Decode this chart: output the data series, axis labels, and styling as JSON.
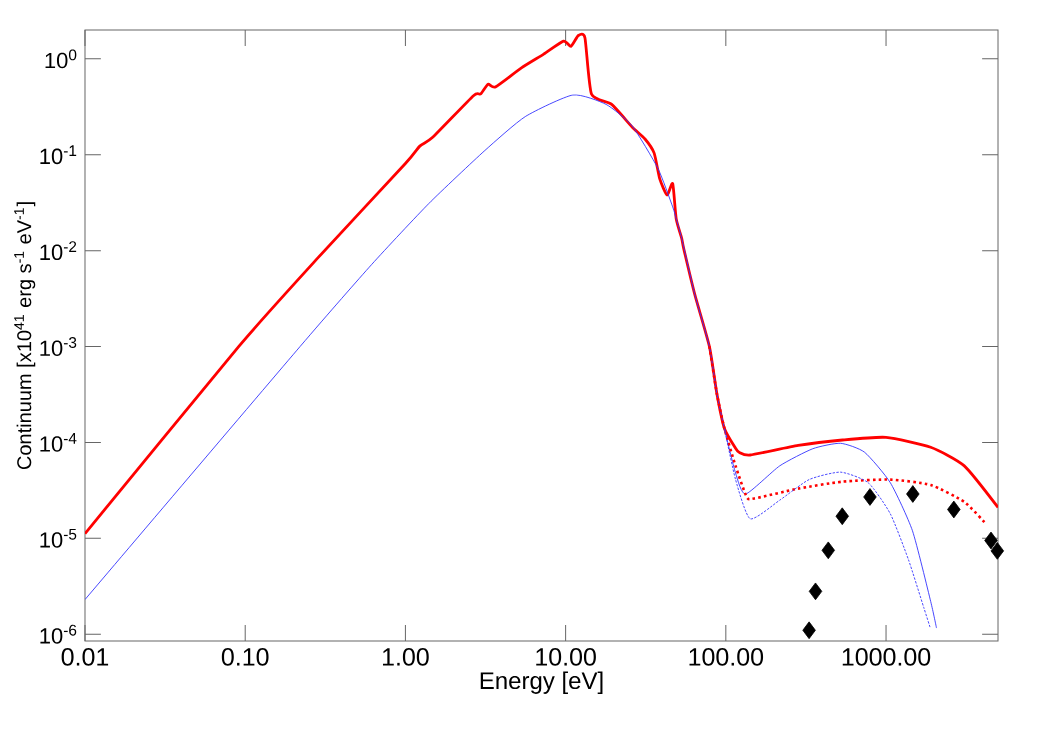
{
  "chart_data": {
    "type": "line",
    "xlabel": "Energy [eV]",
    "ylabel": "Continuum [x10$^{41}$ erg s$^{-1}$ eV$^{-1}$]",
    "log": "xy",
    "xlim": [
      0.01,
      5000
    ],
    "ylim": [
      8.5e-07,
      2
    ],
    "xticks": [
      {
        "value": 0.01,
        "label": "0.01"
      },
      {
        "value": 0.1,
        "label": "0.10"
      },
      {
        "value": 1,
        "label": "1.00"
      },
      {
        "value": 10,
        "label": "10.00"
      },
      {
        "value": 100,
        "label": "100.00"
      },
      {
        "value": 1000,
        "label": "1000.00"
      }
    ],
    "yticks": [
      {
        "value": 1e-06,
        "label": "10$^{-6}$"
      },
      {
        "value": 1e-05,
        "label": "10$^{-5}$"
      },
      {
        "value": 0.0001,
        "label": "10$^{-4}$"
      },
      {
        "value": 0.001,
        "label": "10$^{-3}$"
      },
      {
        "value": 0.01,
        "label": "10$^{-2}$"
      },
      {
        "value": 0.1,
        "label": "10$^{-1}$"
      },
      {
        "value": 1,
        "label": "10$^{0}$"
      }
    ],
    "series": [
      {
        "color": "#ff0000",
        "line_style": "solid",
        "x": [
          0.01,
          0.091,
          0.286,
          1.0,
          1.23,
          1.48,
          2.66,
          2.95,
          3.28,
          3.65,
          5.3,
          7.3,
          9.7,
          10.8,
          12.0,
          13.2,
          14.5,
          19.4,
          26,
          31.3,
          35.7,
          38.7,
          43,
          46.6,
          49,
          53,
          54.6,
          64,
          79,
          88,
          98,
          115,
          121,
          142,
          283,
          535,
          1000,
          1900,
          3080,
          5000
        ],
        "values": [
          1.12e-05,
          0.001,
          0.0085,
          0.081,
          0.123,
          0.152,
          0.413,
          0.43,
          0.544,
          0.51,
          0.805,
          1.12,
          1.53,
          1.35,
          1.75,
          1.66,
          0.43,
          0.335,
          0.195,
          0.146,
          0.104,
          0.056,
          0.038,
          0.05,
          0.0215,
          0.0135,
          0.0105,
          0.0035,
          0.001,
          0.00032,
          0.00014,
          8.7e-05,
          7.9e-05,
          7.4e-05,
          9.3e-05,
          0.000106,
          0.000113,
          8.9e-05,
          5.7e-05,
          2.1e-05
        ]
      },
      {
        "color": "#3333ff",
        "line_style": "solid",
        "x": [
          0.01,
          0.22,
          0.617,
          1.4,
          3.1,
          5.6,
          11.1,
          17.9,
          26,
          37.7,
          46.6,
          49,
          53,
          64,
          79,
          88,
          98,
          115,
          133,
          217,
          349,
          520,
          735,
          1064,
          1462,
          1900,
          2066
        ],
        "values": [
          2.3e-06,
          0.001,
          0.0072,
          0.031,
          0.109,
          0.25,
          0.42,
          0.335,
          0.2,
          0.072,
          0.0286,
          0.0215,
          0.0135,
          0.0035,
          0.001,
          0.00032,
          0.00014,
          4.8e-05,
          2.9e-05,
          5.7e-05,
          8.6e-05,
          9.8e-05,
          7.9e-05,
          3.8e-05,
          1.2e-05,
          2.2e-06,
          1.16e-06
        ]
      },
      {
        "color": "#ff0000",
        "line_style": "dotted",
        "x": [
          79,
          88,
          98,
          115,
          135,
          150,
          283,
          535,
          1064,
          1900,
          3080,
          4230
        ],
        "values": [
          0.001,
          0.00032,
          0.00014,
          5.7e-05,
          2.7e-05,
          2.6e-05,
          3.3e-05,
          3.9e-05,
          4.1e-05,
          3.6e-05,
          2.4e-05,
          1.4e-05
        ]
      },
      {
        "color": "#3333ff",
        "line_style": "dotted",
        "x": [
          98,
          115,
          142,
          217,
          331,
          520,
          775,
          1064,
          1380,
          1720,
          1890
        ],
        "values": [
          0.00014,
          4.1e-05,
          1.6e-05,
          2.5e-05,
          4.1e-05,
          4.9e-05,
          3.8e-05,
          1.8e-05,
          6e-06,
          1.9e-06,
          1.16e-06
        ]
      },
      {
        "type": "scatter",
        "color": "#000000",
        "marker": "diamond",
        "x": [
          331,
          363,
          436,
          533,
          794,
          1470,
          2650,
          4520,
          4950
        ],
        "values": [
          1.1e-06,
          2.8e-06,
          7.5e-06,
          1.7e-05,
          2.7e-05,
          2.9e-05,
          2e-05,
          9.5e-06,
          7.4e-06
        ]
      }
    ]
  }
}
